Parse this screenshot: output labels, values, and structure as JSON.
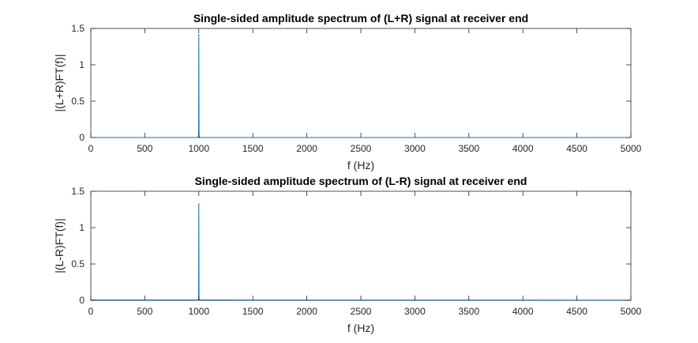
{
  "chart_data": [
    {
      "type": "line",
      "title": "Single-sided amplitude spectrum of (L+R) signal at receiver end",
      "xlabel": "f (Hz)",
      "ylabel": "|(L+R)FT(f)|",
      "xlim": [
        0,
        5000
      ],
      "ylim": [
        0,
        1.5
      ],
      "xticks": [
        "0",
        "500",
        "1000",
        "1500",
        "2000",
        "2500",
        "3000",
        "3500",
        "4000",
        "4500",
        "5000"
      ],
      "yticks": [
        "0",
        "0.5",
        "1",
        "1.5"
      ],
      "grid": false,
      "line_color": "#0072BD",
      "series": [
        {
          "x": [
            0,
            990,
            995,
            998,
            1000,
            1002,
            1005,
            1010,
            5000
          ],
          "y": [
            0,
            0,
            0.01,
            0.02,
            1.42,
            0.02,
            0.01,
            0,
            0
          ]
        }
      ]
    },
    {
      "type": "line",
      "title": "Single-sided amplitude spectrum of (L-R) signal at receiver end",
      "xlabel": "f (Hz)",
      "ylabel": "|(L-R)FT(f)|",
      "xlim": [
        0,
        5000
      ],
      "ylim": [
        0,
        1.5
      ],
      "xticks": [
        "0",
        "500",
        "1000",
        "1500",
        "2000",
        "2500",
        "3000",
        "3500",
        "4000",
        "4500",
        "5000"
      ],
      "yticks": [
        "0",
        "0.5",
        "1",
        "1.5"
      ],
      "grid": false,
      "line_color": "#0072BD",
      "series": [
        {
          "x": [
            0,
            500,
            990,
            995,
            998,
            1000,
            1002,
            1005,
            1010,
            2000,
            5000
          ],
          "y": [
            0.005,
            0.005,
            0.006,
            0.01,
            0.02,
            1.33,
            0.02,
            0.01,
            0.006,
            0.004,
            0.003
          ]
        }
      ]
    }
  ]
}
